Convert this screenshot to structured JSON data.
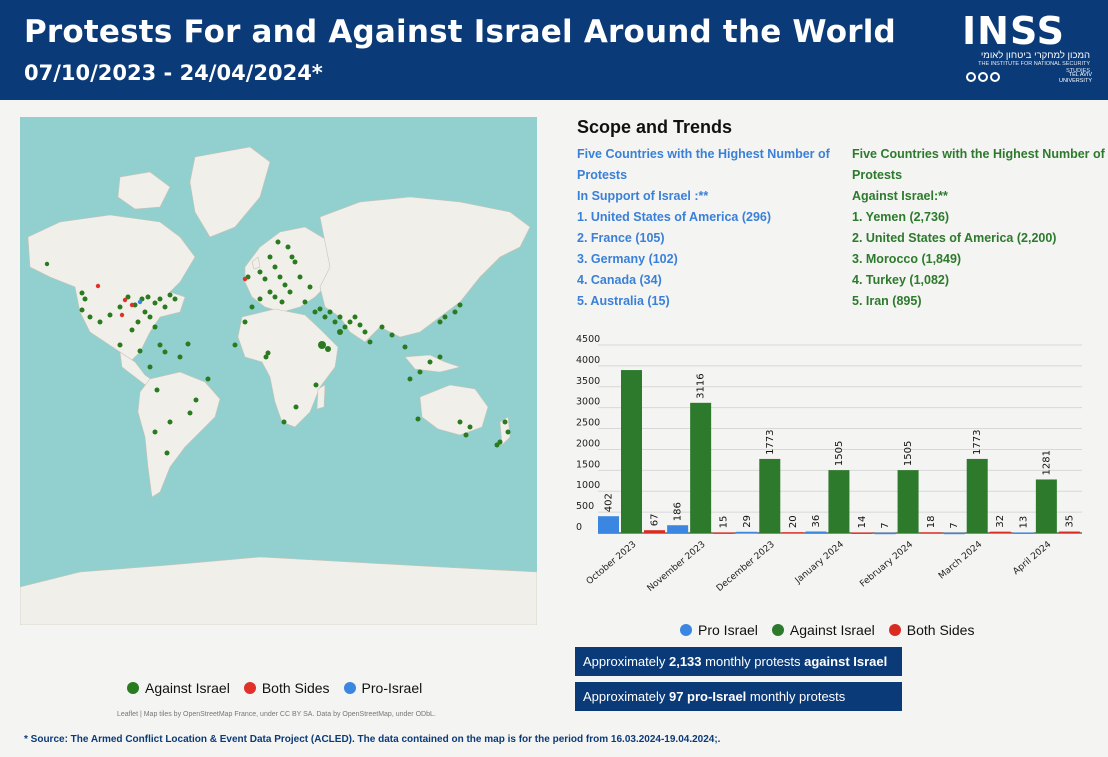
{
  "header": {
    "title": "Protests For and Against Israel Around the World",
    "subtitle": "07/10/2023 - 24/04/2024*",
    "logo_word": "INSS",
    "logo_hebrew": "המכון למחקרי ביטחון לאומי",
    "logo_english": "THE INSTITUTE FOR NATIONAL SECURITY STUDIES",
    "logo_university": "TEL AVIV UNIVERSITY"
  },
  "map": {
    "legend": [
      {
        "label": "Against Israel",
        "color": "#2a7a1f"
      },
      {
        "label": "Both Sides",
        "color": "#e0312a"
      },
      {
        "label": "Pro-Israel",
        "color": "#3a86e0"
      }
    ],
    "attribution": "Leaflet | Map tiles by OpenStreetMap France, under CC BY SA. Data by OpenStreetMap, under ODbL."
  },
  "scope": {
    "title": "Scope and Trends",
    "pro": {
      "heading": "Five Countries with the Highest Number of Protests",
      "subheading": "In Support of Israel :**",
      "items": [
        "1. United States of America (296)",
        "2. France (105)",
        "3. Germany (102)",
        "4. Canada (34)",
        "5. Australia (15)"
      ]
    },
    "against": {
      "heading": "Five Countries with the Highest Number of Protests",
      "subheading": "Against Israel:**",
      "items": [
        "1. Yemen (2,736)",
        "2. United States of America (2,200)",
        "3. Morocco (1,849)",
        "4. Turkey (1,082)",
        "5. Iran (895)"
      ]
    }
  },
  "chart_data": {
    "type": "bar",
    "title": "",
    "categories": [
      "October 2023",
      "November 2023",
      "December 2023",
      "January 2024",
      "February 2024",
      "March 2024",
      "April 2024"
    ],
    "series": [
      {
        "name": "Pro Israel",
        "color": "#3a86e0",
        "values": [
          402,
          186,
          29,
          36,
          7,
          7,
          13
        ],
        "labels": [
          "402",
          "186",
          "29",
          "36",
          "7",
          "7",
          "13"
        ]
      },
      {
        "name": "Against Israel",
        "color": "#2d7a2d",
        "values": [
          3900,
          3116,
          1773,
          1505,
          1505,
          1773,
          1281
        ],
        "labels": [
          "",
          "3116",
          "1773",
          "1505",
          "1505",
          "1773",
          "1281"
        ]
      },
      {
        "name": "Both Sides",
        "color": "#d92b22",
        "values": [
          67,
          15,
          20,
          14,
          18,
          32,
          35
        ],
        "labels": [
          "67",
          "15",
          "20",
          "14",
          "18",
          "32",
          "35"
        ]
      }
    ],
    "yticks": [
      0,
      500,
      1000,
      1500,
      2000,
      2500,
      3000,
      3500,
      4000,
      4500
    ],
    "ylim": [
      0,
      4500
    ],
    "grid": true,
    "legend_position": "bottom"
  },
  "chart_legend": [
    {
      "label": "Pro Israel",
      "color": "#3a86e0"
    },
    {
      "label": "Against Israel",
      "color": "#2d7a2d"
    },
    {
      "label": "Both Sides",
      "color": "#d92b22"
    }
  ],
  "stats": {
    "s1_pre": "Approximately ",
    "s1_num": "2,133",
    "s1_mid": " monthly protests ",
    "s1_bold": "against Israel",
    "s2_pre": "Approximately ",
    "s2_bold": "97 pro-Israel",
    "s2_post": " monthly protests"
  },
  "footnote": "* Source: The Armed Conflict Location & Event Data Project (ACLED). The data contained on the map is for the period from 16.03.2024-19.04.2024;."
}
